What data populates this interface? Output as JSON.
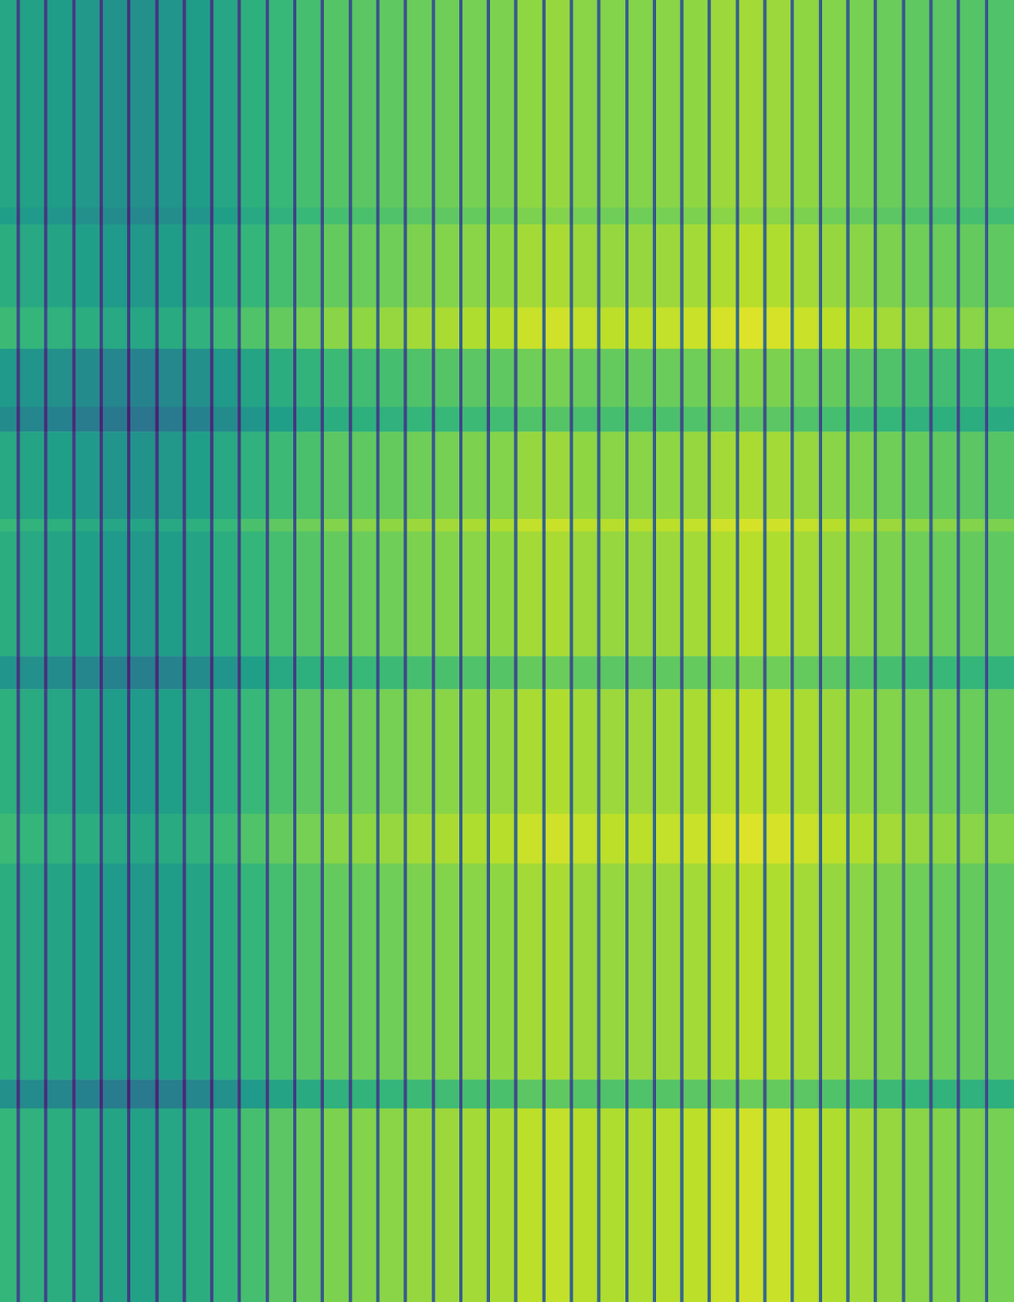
{
  "chart_data": {
    "type": "heatmap",
    "tick_labels": false,
    "xlim": [
      0,
      1221
    ],
    "ylim": [
      0,
      1568
    ],
    "color_range": [
      0,
      100
    ],
    "x_edges": [
      0,
      20,
      24,
      53,
      57,
      87,
      91,
      120,
      124,
      153,
      157,
      187,
      191,
      220,
      224,
      253,
      257,
      286,
      290,
      320,
      324,
      353,
      357,
      386,
      390,
      420,
      424,
      453,
      457,
      486,
      490,
      520,
      524,
      553,
      557,
      586,
      590,
      619,
      623,
      653,
      657,
      686,
      690,
      719,
      723,
      753,
      757,
      786,
      790,
      819,
      823,
      852,
      856,
      886,
      890,
      919,
      923,
      952,
      956,
      986,
      990,
      1019,
      1023,
      1052,
      1056,
      1086,
      1090,
      1119,
      1123,
      1152,
      1156,
      1186,
      1190,
      1221
    ],
    "y_edges": [
      0,
      250,
      270,
      370,
      420,
      490,
      520,
      625,
      640,
      790,
      830,
      980,
      1040,
      1300,
      1335,
      1568
    ],
    "cells": [
      [
        59,
        19,
        57,
        18,
        55,
        17,
        53,
        16,
        51,
        15,
        50,
        15,
        52,
        16,
        55,
        17,
        59,
        19,
        63,
        21,
        67,
        23,
        70,
        24,
        73,
        25,
        74,
        26,
        75,
        26,
        77,
        27,
        78,
        27,
        79,
        27,
        80,
        28,
        83,
        28,
        84,
        29,
        82,
        29,
        81,
        29,
        81,
        29,
        82,
        29,
        83,
        29,
        85,
        30,
        86,
        30,
        85,
        30,
        83,
        29,
        81,
        29,
        79,
        28,
        77,
        28,
        75,
        27,
        74,
        27,
        73,
        27,
        72
      ],
      [
        56,
        17,
        54,
        16,
        52,
        15,
        50,
        14,
        48,
        13,
        47,
        13,
        49,
        14,
        52,
        15,
        56,
        17,
        60,
        19,
        64,
        21,
        67,
        22,
        70,
        23,
        71,
        24,
        72,
        24,
        74,
        25,
        75,
        25,
        76,
        25,
        77,
        26,
        80,
        26,
        81,
        27,
        79,
        27,
        78,
        27,
        78,
        27,
        79,
        27,
        80,
        27,
        82,
        28,
        83,
        28,
        82,
        28,
        80,
        27,
        78,
        27,
        76,
        26,
        74,
        26,
        72,
        25,
        71,
        25,
        70,
        25,
        69
      ],
      [
        62,
        20,
        60,
        19,
        58,
        18,
        56,
        17,
        54,
        16,
        53,
        16,
        55,
        17,
        58,
        18,
        62,
        20,
        66,
        22,
        70,
        24,
        73,
        25,
        76,
        26,
        77,
        27,
        78,
        27,
        80,
        28,
        81,
        28,
        82,
        28,
        83,
        29,
        86,
        29,
        87,
        30,
        85,
        30,
        84,
        30,
        84,
        30,
        85,
        30,
        86,
        30,
        88,
        31,
        89,
        31,
        88,
        31,
        86,
        30,
        84,
        30,
        82,
        29,
        80,
        29,
        78,
        28,
        77,
        28,
        76,
        28,
        75
      ],
      [
        68,
        23,
        66,
        22,
        64,
        21,
        62,
        20,
        60,
        19,
        59,
        19,
        61,
        20,
        64,
        21,
        68,
        23,
        72,
        25,
        76,
        27,
        79,
        28,
        82,
        29,
        83,
        30,
        84,
        30,
        86,
        31,
        87,
        31,
        88,
        31,
        89,
        32,
        92,
        32,
        93,
        33,
        91,
        33,
        90,
        33,
        90,
        33,
        91,
        33,
        92,
        33,
        94,
        34,
        95,
        34,
        94,
        34,
        92,
        33,
        90,
        33,
        88,
        32,
        86,
        32,
        84,
        31,
        83,
        31,
        82,
        31,
        81
      ],
      [
        54,
        16,
        52,
        15,
        50,
        14,
        48,
        13,
        46,
        12,
        45,
        12,
        47,
        13,
        50,
        14,
        54,
        16,
        58,
        18,
        62,
        20,
        65,
        21,
        68,
        22,
        69,
        23,
        70,
        23,
        72,
        24,
        73,
        24,
        74,
        24,
        75,
        25,
        78,
        25,
        79,
        26,
        77,
        26,
        76,
        26,
        76,
        26,
        77,
        26,
        78,
        26,
        80,
        27,
        81,
        27,
        80,
        27,
        78,
        26,
        76,
        26,
        74,
        25,
        72,
        25,
        70,
        24,
        69,
        24,
        68,
        24,
        67
      ],
      [
        48,
        13,
        46,
        12,
        44,
        11,
        42,
        10,
        40,
        9,
        39,
        9,
        41,
        10,
        44,
        11,
        48,
        13,
        52,
        15,
        56,
        17,
        59,
        18,
        62,
        19,
        63,
        20,
        64,
        20,
        66,
        21,
        67,
        21,
        68,
        21,
        69,
        22,
        72,
        22,
        73,
        23,
        71,
        23,
        70,
        23,
        70,
        23,
        71,
        23,
        72,
        23,
        74,
        24,
        75,
        24,
        74,
        24,
        72,
        23,
        70,
        23,
        68,
        22,
        66,
        22,
        64,
        21,
        63,
        21,
        62,
        21,
        61
      ],
      [
        60,
        19,
        58,
        18,
        56,
        17,
        54,
        16,
        52,
        15,
        51,
        15,
        53,
        16,
        56,
        17,
        60,
        19,
        64,
        21,
        68,
        23,
        71,
        24,
        74,
        25,
        75,
        26,
        76,
        26,
        78,
        27,
        79,
        27,
        80,
        27,
        81,
        28,
        84,
        28,
        85,
        29,
        83,
        29,
        82,
        29,
        82,
        29,
        83,
        29,
        84,
        29,
        86,
        30,
        87,
        30,
        86,
        30,
        84,
        29,
        82,
        29,
        80,
        28,
        78,
        28,
        76,
        27,
        75,
        27,
        74,
        27,
        73
      ],
      [
        67,
        22,
        65,
        21,
        63,
        20,
        61,
        19,
        59,
        18,
        58,
        18,
        60,
        19,
        63,
        20,
        67,
        22,
        71,
        24,
        75,
        26,
        78,
        27,
        81,
        28,
        82,
        29,
        83,
        29,
        85,
        30,
        86,
        30,
        87,
        30,
        88,
        31,
        91,
        31,
        92,
        32,
        90,
        32,
        89,
        32,
        89,
        32,
        90,
        32,
        91,
        32,
        93,
        33,
        94,
        33,
        93,
        33,
        91,
        32,
        89,
        32,
        87,
        31,
        85,
        31,
        83,
        30,
        82,
        30,
        81,
        30,
        80
      ],
      [
        62,
        20,
        60,
        19,
        58,
        18,
        56,
        17,
        54,
        16,
        53,
        16,
        55,
        17,
        58,
        18,
        62,
        20,
        66,
        22,
        70,
        24,
        73,
        25,
        76,
        26,
        77,
        27,
        78,
        27,
        80,
        28,
        81,
        28,
        82,
        28,
        83,
        29,
        86,
        29,
        87,
        30,
        85,
        30,
        84,
        30,
        84,
        30,
        85,
        30,
        86,
        30,
        88,
        31,
        89,
        31,
        88,
        31,
        86,
        30,
        84,
        30,
        82,
        29,
        80,
        29,
        78,
        28,
        77,
        28,
        76,
        28,
        75
      ],
      [
        52,
        15,
        50,
        14,
        48,
        13,
        46,
        12,
        44,
        11,
        43,
        11,
        45,
        12,
        48,
        13,
        52,
        15,
        56,
        17,
        60,
        19,
        63,
        20,
        66,
        21,
        67,
        22,
        68,
        22,
        70,
        23,
        71,
        23,
        72,
        23,
        73,
        24,
        76,
        24,
        77,
        25,
        75,
        25,
        74,
        25,
        74,
        25,
        75,
        25,
        76,
        25,
        78,
        26,
        79,
        26,
        78,
        26,
        76,
        25,
        74,
        25,
        72,
        24,
        70,
        24,
        68,
        23,
        67,
        23,
        66,
        23,
        65
      ],
      [
        63,
        20,
        61,
        19,
        59,
        18,
        57,
        17,
        55,
        16,
        54,
        16,
        56,
        17,
        59,
        18,
        63,
        20,
        67,
        22,
        71,
        24,
        74,
        25,
        77,
        26,
        78,
        27,
        79,
        27,
        81,
        28,
        82,
        28,
        83,
        28,
        84,
        29,
        87,
        29,
        88,
        30,
        86,
        30,
        85,
        30,
        85,
        30,
        86,
        30,
        87,
        30,
        89,
        31,
        90,
        31,
        89,
        31,
        87,
        30,
        85,
        30,
        83,
        29,
        81,
        29,
        79,
        28,
        78,
        28,
        77,
        28,
        76
      ],
      [
        68,
        23,
        66,
        22,
        64,
        21,
        62,
        20,
        60,
        19,
        59,
        19,
        61,
        20,
        64,
        21,
        68,
        23,
        72,
        25,
        76,
        27,
        79,
        28,
        82,
        29,
        83,
        30,
        84,
        30,
        86,
        31,
        87,
        31,
        88,
        31,
        89,
        32,
        92,
        32,
        93,
        33,
        91,
        33,
        90,
        33,
        90,
        33,
        91,
        33,
        92,
        33,
        94,
        34,
        95,
        34,
        94,
        34,
        92,
        33,
        90,
        33,
        88,
        32,
        86,
        32,
        84,
        31,
        83,
        31,
        82,
        31,
        81
      ],
      [
        62,
        20,
        60,
        19,
        58,
        18,
        56,
        17,
        54,
        16,
        53,
        16,
        55,
        17,
        58,
        18,
        62,
        20,
        66,
        22,
        70,
        24,
        73,
        25,
        76,
        26,
        77,
        27,
        78,
        27,
        80,
        28,
        81,
        28,
        82,
        28,
        83,
        29,
        86,
        29,
        87,
        30,
        85,
        30,
        84,
        30,
        84,
        30,
        85,
        30,
        86,
        30,
        88,
        31,
        89,
        31,
        88,
        31,
        86,
        30,
        84,
        30,
        82,
        29,
        80,
        29,
        78,
        28,
        77,
        28,
        76,
        28,
        75
      ],
      [
        50,
        14,
        48,
        13,
        46,
        12,
        44,
        11,
        42,
        10,
        41,
        10,
        43,
        11,
        46,
        12,
        50,
        14,
        54,
        16,
        58,
        18,
        61,
        19,
        64,
        20,
        65,
        21,
        66,
        21,
        68,
        22,
        69,
        22,
        70,
        22,
        71,
        23,
        74,
        23,
        75,
        24,
        73,
        24,
        72,
        24,
        72,
        24,
        73,
        24,
        74,
        24,
        76,
        25,
        77,
        25,
        76,
        25,
        74,
        24,
        72,
        24,
        70,
        23,
        68,
        23,
        66,
        22,
        65,
        22,
        64,
        22,
        63
      ],
      [
        66,
        22,
        64,
        21,
        62,
        20,
        60,
        19,
        58,
        18,
        57,
        18,
        59,
        19,
        62,
        20,
        66,
        22,
        70,
        24,
        74,
        26,
        77,
        27,
        80,
        28,
        81,
        29,
        82,
        29,
        84,
        30,
        85,
        30,
        86,
        30,
        87,
        31,
        90,
        31,
        91,
        32,
        89,
        32,
        88,
        32,
        88,
        32,
        89,
        32,
        90,
        32,
        92,
        33,
        93,
        33,
        92,
        33,
        90,
        32,
        88,
        32,
        86,
        31,
        84,
        31,
        82,
        30,
        81,
        30,
        80,
        30,
        79
      ]
    ]
  }
}
